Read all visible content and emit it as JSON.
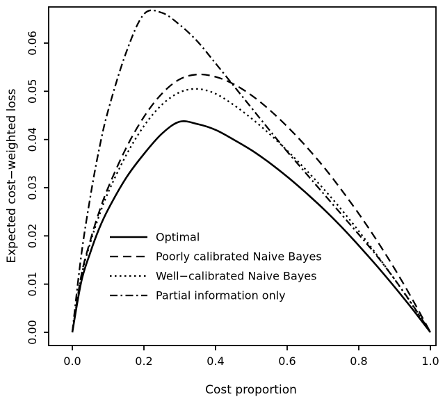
{
  "figure": {
    "background": "#ffffff",
    "line_color": "#000000"
  },
  "chart_data": {
    "type": "line",
    "title": "",
    "xlabel": "Cost proportion",
    "ylabel": "Expected cost−weighted loss",
    "xlim": [
      0,
      1
    ],
    "ylim": [
      0,
      0.068
    ],
    "grid": false,
    "legend_position": "inside-center-left",
    "x_ticks": {
      "values": [
        0,
        0.2,
        0.4,
        0.6,
        0.8,
        1.0
      ],
      "labels": [
        "0.0",
        "0.2",
        "0.4",
        "0.6",
        "0.8",
        "1.0"
      ]
    },
    "y_ticks": {
      "values": [
        0,
        0.01,
        0.02,
        0.03,
        0.04,
        0.05,
        0.06
      ],
      "labels": [
        "0.00",
        "0.01",
        "0.02",
        "0.03",
        "0.04",
        "0.05",
        "0.06"
      ]
    },
    "x": [
      0,
      0.025,
      0.05,
      0.075,
      0.1,
      0.15,
      0.2,
      0.25,
      0.3,
      0.35,
      0.4,
      0.45,
      0.5,
      0.55,
      0.6,
      0.65,
      0.7,
      0.75,
      0.8,
      0.85,
      0.9,
      0.95,
      1
    ],
    "series": [
      {
        "name": "Optimal",
        "line_style": "solid",
        "values": [
          0,
          0.0105,
          0.0165,
          0.0215,
          0.0255,
          0.032,
          0.037,
          0.0412,
          0.0437,
          0.0432,
          0.042,
          0.04,
          0.0378,
          0.0352,
          0.0323,
          0.0291,
          0.0257,
          0.022,
          0.018,
          0.0138,
          0.0094,
          0.0048,
          0
        ]
      },
      {
        "name": "Poorly calibrated Naive Bayes",
        "line_style": "dashed",
        "values": [
          0,
          0.0118,
          0.019,
          0.025,
          0.03,
          0.0382,
          0.0447,
          0.0495,
          0.0525,
          0.0535,
          0.053,
          0.0515,
          0.0492,
          0.0462,
          0.0427,
          0.0388,
          0.0345,
          0.0297,
          0.0246,
          0.0191,
          0.0132,
          0.0068,
          0
        ]
      },
      {
        "name": "Well−calibrated Naive Bayes",
        "line_style": "dotted",
        "values": [
          0,
          0.0115,
          0.0185,
          0.0242,
          0.029,
          0.0367,
          0.0428,
          0.0472,
          0.0498,
          0.0505,
          0.0495,
          0.0472,
          0.0444,
          0.0412,
          0.0377,
          0.0339,
          0.0299,
          0.0256,
          0.021,
          0.0161,
          0.011,
          0.0056,
          0
        ]
      },
      {
        "name": "Partial information only",
        "line_style": "dashdot",
        "values": [
          0,
          0.016,
          0.028,
          0.038,
          0.046,
          0.058,
          0.066,
          0.0663,
          0.0638,
          0.0603,
          0.0558,
          0.0512,
          0.0466,
          0.042,
          0.0375,
          0.0332,
          0.0289,
          0.0246,
          0.0203,
          0.0159,
          0.011,
          0.0057,
          0
        ]
      }
    ]
  }
}
